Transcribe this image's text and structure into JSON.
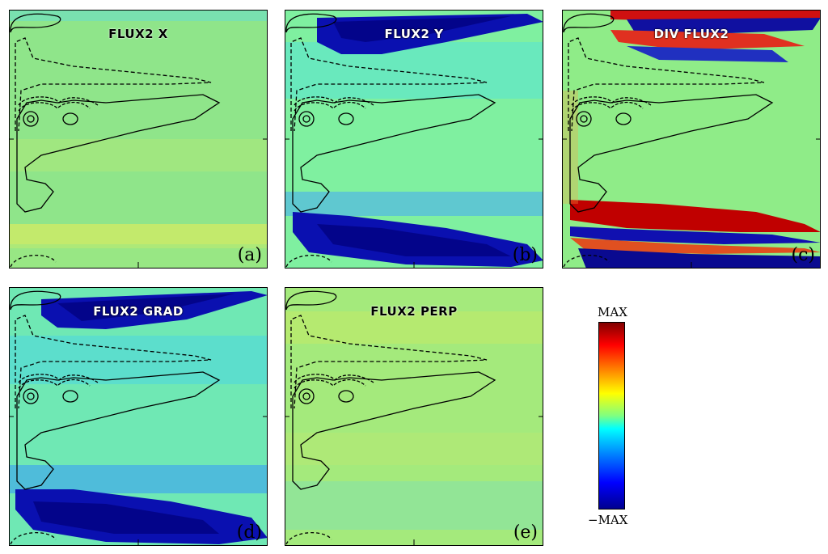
{
  "panels": [
    {
      "title": "FLUX2 X",
      "label": "(a)",
      "title_style": "dark",
      "background": "#8fe58a"
    },
    {
      "title": "FLUX2 Y",
      "label": "(b)",
      "title_style": "light",
      "background": "#7ff0a0"
    },
    {
      "title": "DIV FLUX2",
      "label": "(c)",
      "title_style": "light",
      "background": "#8fec88"
    },
    {
      "title": "FLUX2 GRAD",
      "label": "(d)",
      "title_style": "light",
      "background": "#6fe8b4"
    },
    {
      "title": "FLUX2 PERP",
      "label": "(e)",
      "title_style": "dark",
      "background": "#a4ea7c"
    }
  ],
  "colorbar": {
    "max_label": "MAX",
    "min_label": "−MAX",
    "colors": [
      "#00008f",
      "#0000ff",
      "#0080ff",
      "#00ffff",
      "#80ff80",
      "#ffff00",
      "#ff8000",
      "#ff0000",
      "#800000"
    ]
  }
}
